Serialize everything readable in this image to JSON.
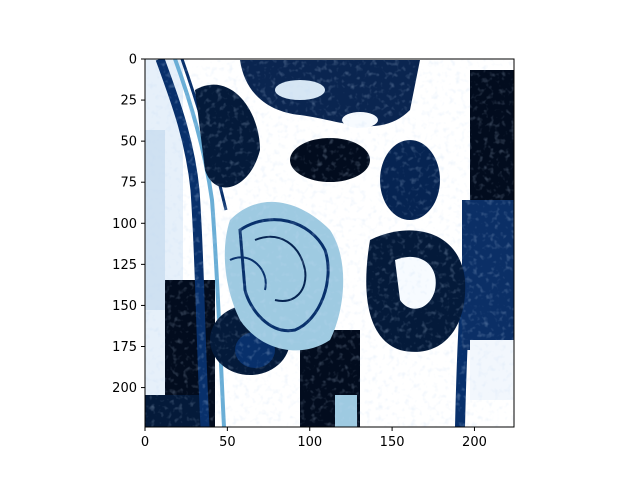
{
  "chart_data": {
    "type": "heatmap",
    "title": "",
    "xlabel": "",
    "ylabel": "",
    "xlim": [
      0,
      224
    ],
    "ylim": [
      224,
      0
    ],
    "x_ticks": [
      0,
      50,
      100,
      150,
      200
    ],
    "y_ticks": [
      0,
      25,
      50,
      75,
      100,
      125,
      150,
      175,
      200
    ],
    "colormap": "Blues_r",
    "colors": {
      "low": "#08306b",
      "mid": "#6aaed6",
      "high": "#f7fbff",
      "dark": "#020c1e"
    },
    "grid": false,
    "legend": "none",
    "content": "false-colour image of a human torso scan (cathode/colormap rendering)"
  }
}
